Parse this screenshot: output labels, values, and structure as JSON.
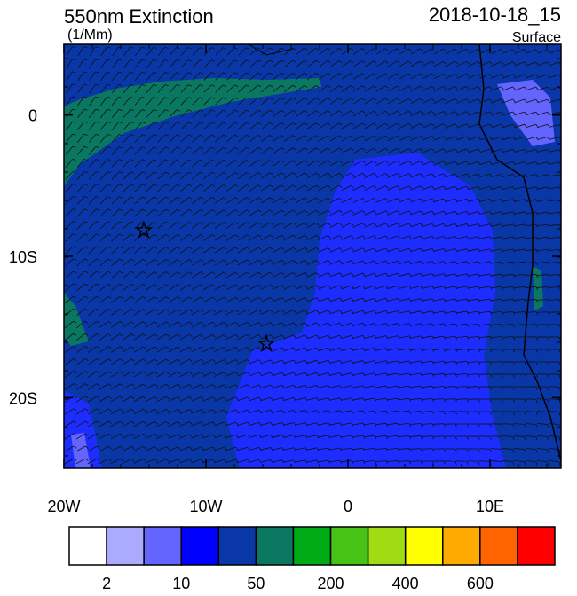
{
  "header": {
    "title": "550nm Extinction",
    "units": "(1/Mm)",
    "date": "2018-10-18_15",
    "level": "Surface"
  },
  "map": {
    "lon_range": [
      -20,
      15
    ],
    "lat_range": [
      -25,
      5
    ],
    "lon_ticks": [
      {
        "value": -20,
        "label": "20W"
      },
      {
        "value": -10,
        "label": "10W"
      },
      {
        "value": 0,
        "label": "0"
      },
      {
        "value": 10,
        "label": "10E"
      }
    ],
    "lat_ticks": [
      {
        "value": 0,
        "label": "0"
      },
      {
        "value": -10,
        "label": "10S"
      },
      {
        "value": -20,
        "label": "20S"
      }
    ]
  },
  "colorbar": {
    "colors": [
      "#ffffff",
      "#aaaaff",
      "#6464ff",
      "#0000ff",
      "#0a37a8",
      "#0a7860",
      "#00aa14",
      "#46c314",
      "#a0dc14",
      "#ffff00",
      "#ffaa00",
      "#ff6400",
      "#ff0000"
    ],
    "labels": [
      "2",
      "10",
      "50",
      "200",
      "400",
      "600"
    ]
  }
}
